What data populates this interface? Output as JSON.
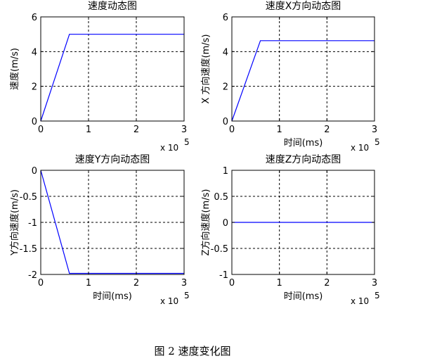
{
  "figure": {
    "caption": "图 2  速度变化图"
  },
  "chart_data": [
    {
      "type": "line",
      "title": "速度动态图",
      "xlabel": "",
      "ylabel": "速度(m/s)",
      "x_multiplier": "x 10",
      "x_multiplier_exp": "5",
      "xlim": [
        0,
        3
      ],
      "ylim": [
        0,
        6
      ],
      "xticks": [
        "0",
        "1",
        "2",
        "3"
      ],
      "yticks": [
        "0",
        "2",
        "4",
        "6"
      ],
      "ytick_values": [
        0,
        2,
        4,
        6
      ],
      "grid": true,
      "color": "#0000ff",
      "series": [
        {
          "x": [
            0,
            0.6,
            3
          ],
          "y": [
            0,
            5,
            5
          ]
        }
      ]
    },
    {
      "type": "line",
      "title": "速度X方向动态图",
      "xlabel": "时间(ms)",
      "ylabel": "X 方向速度(m/s)",
      "x_multiplier": "x 10",
      "x_multiplier_exp": "5",
      "xlim": [
        0,
        3
      ],
      "ylim": [
        0,
        6
      ],
      "xticks": [
        "0",
        "1",
        "2",
        "3"
      ],
      "yticks": [
        "0",
        "2",
        "4",
        "6"
      ],
      "ytick_values": [
        0,
        2,
        4,
        6
      ],
      "grid": true,
      "color": "#0000ff",
      "series": [
        {
          "x": [
            0,
            0.6,
            3
          ],
          "y": [
            0,
            4.63,
            4.63
          ]
        }
      ]
    },
    {
      "type": "line",
      "title": "速度Y方向动态图",
      "xlabel": "时间(ms)",
      "ylabel": "Y方向速度(m/s)",
      "x_multiplier": "x 10",
      "x_multiplier_exp": "5",
      "xlim": [
        0,
        3
      ],
      "ylim": [
        -2,
        0
      ],
      "xticks": [
        "0",
        "1",
        "2",
        "3"
      ],
      "yticks": [
        "-2",
        "-1.5",
        "-1",
        "-0.5",
        "0"
      ],
      "ytick_values": [
        -2,
        -1.5,
        -1,
        -0.5,
        0
      ],
      "grid": true,
      "color": "#0000ff",
      "series": [
        {
          "x": [
            0,
            0.6,
            3
          ],
          "y": [
            0,
            -1.98,
            -1.98
          ]
        }
      ]
    },
    {
      "type": "line",
      "title": "速度Z方向动态图",
      "xlabel": "时间(ms)",
      "ylabel": "Z方向速度(m/s)",
      "x_multiplier": "x 10",
      "x_multiplier_exp": "5",
      "xlim": [
        0,
        3
      ],
      "ylim": [
        -1,
        1
      ],
      "xticks": [
        "0",
        "1",
        "2",
        "3"
      ],
      "yticks": [
        "-1",
        "-0.5",
        "0",
        "0.5",
        "1"
      ],
      "ytick_values": [
        -1,
        -0.5,
        0,
        0.5,
        1
      ],
      "grid": true,
      "color": "#0000ff",
      "series": [
        {
          "x": [
            0,
            3
          ],
          "y": [
            0,
            0
          ]
        }
      ]
    }
  ]
}
